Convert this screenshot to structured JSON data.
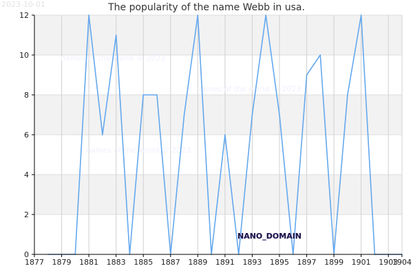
{
  "stamp": "2023-10-01",
  "chart_data": {
    "type": "line",
    "title": "The popularity of the name Webb in usa.",
    "xlabel": "",
    "ylabel": "",
    "xlim": [
      1877,
      1904
    ],
    "ylim": [
      0,
      12
    ],
    "x_ticks": [
      1877,
      1879,
      1881,
      1883,
      1885,
      1887,
      1889,
      1891,
      1893,
      1895,
      1897,
      1899,
      1901,
      1903,
      1904
    ],
    "y_ticks": [
      0,
      2,
      4,
      6,
      8,
      10,
      12
    ],
    "grid": true,
    "series_color": "#64a8ee",
    "x": [
      1878,
      1879,
      1880,
      1881,
      1882,
      1883,
      1884,
      1885,
      1886,
      1887,
      1888,
      1889,
      1890,
      1891,
      1892,
      1893,
      1894,
      1895,
      1896,
      1897,
      1898,
      1899,
      1900,
      1901,
      1902,
      1903,
      1904
    ],
    "values": [
      0,
      0,
      0,
      12,
      6,
      11,
      0,
      8,
      8,
      0,
      7,
      12,
      0,
      6,
      0,
      7,
      12,
      7,
      0,
      9,
      10,
      0,
      8,
      12,
      0,
      0,
      0
    ],
    "watermarks": [
      "names of the world © 2023",
      "names of the world © 2023",
      "names of the world © 2023"
    ],
    "logo_text": "NANO_DOMAIN"
  }
}
